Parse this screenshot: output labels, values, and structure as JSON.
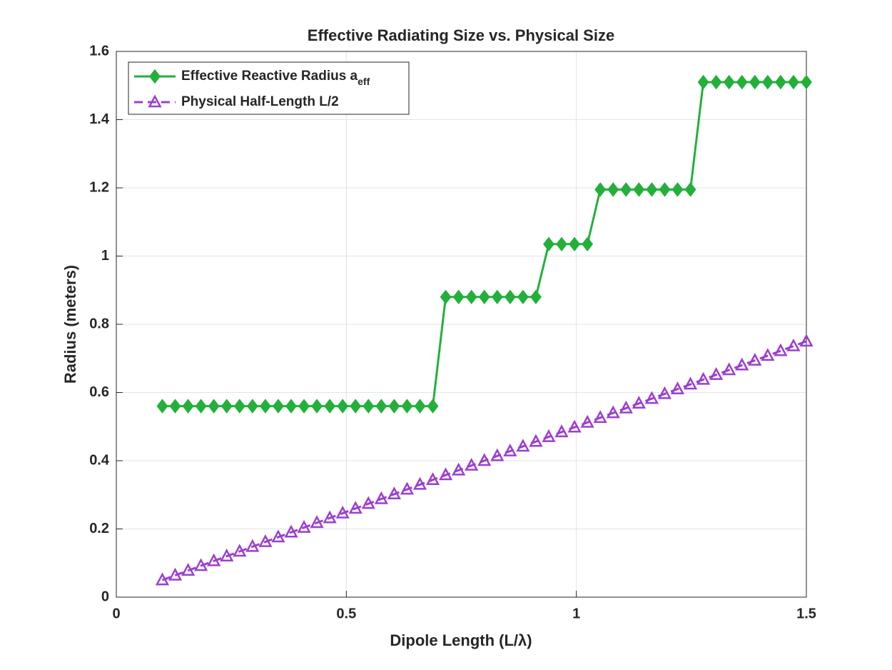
{
  "chart_data": {
    "type": "line",
    "title": "Effective Radiating Size vs. Physical Size",
    "x_label": "Dipole Length (L/λ)",
    "y_label": "Radius (meters)",
    "x": [
      0.1,
      0.128,
      0.156,
      0.184,
      0.212,
      0.24,
      0.268,
      0.296,
      0.324,
      0.352,
      0.38,
      0.408,
      0.436,
      0.464,
      0.492,
      0.52,
      0.548,
      0.576,
      0.604,
      0.632,
      0.66,
      0.688,
      0.716,
      0.744,
      0.772,
      0.8,
      0.828,
      0.856,
      0.884,
      0.912,
      0.94,
      0.968,
      0.996,
      1.024,
      1.052,
      1.08,
      1.108,
      1.136,
      1.164,
      1.192,
      1.22,
      1.248,
      1.276,
      1.304,
      1.332,
      1.36,
      1.388,
      1.416,
      1.444,
      1.472,
      1.5
    ],
    "series": [
      {
        "name": "Effective Reactive Radius a",
        "name_subscript": "eff",
        "color": "#22b03a",
        "marker": "diamond",
        "values": [
          0.56,
          0.56,
          0.56,
          0.56,
          0.56,
          0.56,
          0.56,
          0.56,
          0.56,
          0.56,
          0.56,
          0.56,
          0.56,
          0.56,
          0.56,
          0.56,
          0.56,
          0.56,
          0.56,
          0.56,
          0.56,
          0.56,
          0.88,
          0.88,
          0.88,
          0.88,
          0.88,
          0.88,
          0.88,
          0.88,
          1.035,
          1.035,
          1.035,
          1.035,
          1.195,
          1.195,
          1.195,
          1.195,
          1.195,
          1.195,
          1.195,
          1.195,
          1.51,
          1.51,
          1.51,
          1.51,
          1.51,
          1.51,
          1.51,
          1.51,
          1.51
        ]
      },
      {
        "name": "Physical Half-Length L/2",
        "color": "#9b3fcf",
        "marker": "triangle",
        "dashed": true,
        "values": [
          0.05,
          0.064,
          0.078,
          0.092,
          0.106,
          0.12,
          0.134,
          0.148,
          0.162,
          0.176,
          0.19,
          0.204,
          0.218,
          0.232,
          0.246,
          0.26,
          0.274,
          0.288,
          0.302,
          0.316,
          0.33,
          0.344,
          0.358,
          0.372,
          0.386,
          0.4,
          0.414,
          0.428,
          0.442,
          0.456,
          0.47,
          0.484,
          0.498,
          0.512,
          0.526,
          0.54,
          0.554,
          0.568,
          0.582,
          0.596,
          0.61,
          0.624,
          0.638,
          0.652,
          0.666,
          0.68,
          0.694,
          0.708,
          0.722,
          0.736,
          0.75
        ]
      }
    ],
    "xlim": [
      0,
      1.5
    ],
    "xticks": [
      0,
      0.5,
      1,
      1.5
    ],
    "ylim": [
      0,
      1.6
    ],
    "yticks": [
      0,
      0.2,
      0.4,
      0.6,
      0.8,
      1,
      1.2,
      1.4,
      1.6
    ],
    "grid": true,
    "legend": "top-left"
  }
}
